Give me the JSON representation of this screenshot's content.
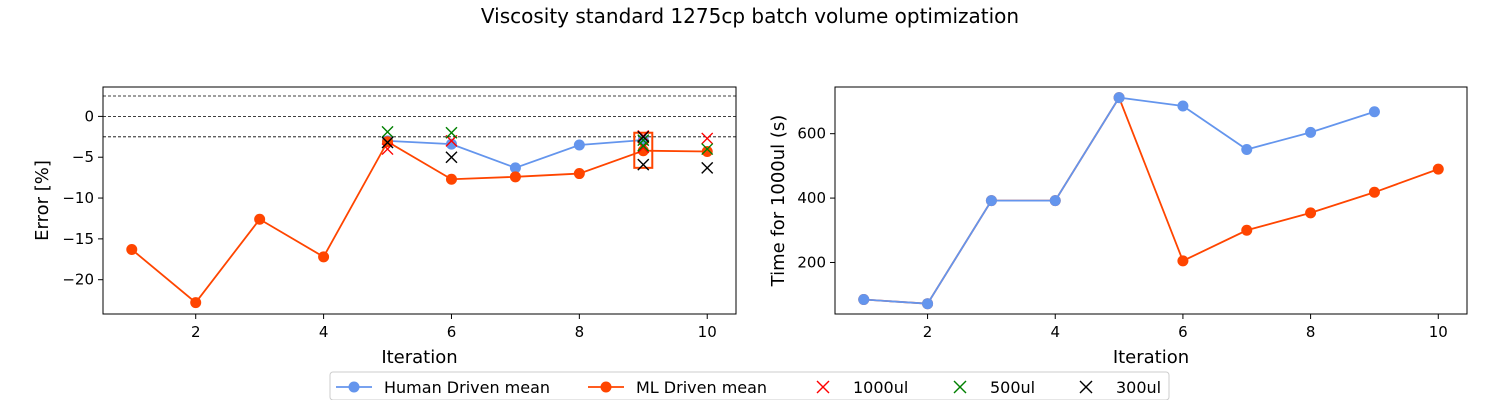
{
  "title": "Viscosity standard 1275cp batch volume optimization",
  "colors": {
    "human": "#6495ED",
    "ml": "#FF4500",
    "v1000": "#FF0000",
    "v500": "#008000",
    "v300": "#000000"
  },
  "legend": {
    "items": [
      {
        "label": "Human Driven mean",
        "marker": "circle-line",
        "color": "#6495ED"
      },
      {
        "label": "ML Driven mean",
        "marker": "circle-line",
        "color": "#FF4500"
      },
      {
        "label": "1000ul",
        "marker": "x",
        "color": "#FF0000"
      },
      {
        "label": "500ul",
        "marker": "x",
        "color": "#008000"
      },
      {
        "label": "300ul",
        "marker": "x",
        "color": "#000000"
      }
    ]
  },
  "chart_data": [
    {
      "type": "line",
      "xlabel": "Iteration",
      "ylabel": "Error [%]",
      "xlim": [
        0.55,
        10.45
      ],
      "ylim": [
        -24.2,
        3.6
      ],
      "xticks": [
        2,
        4,
        6,
        8,
        10
      ],
      "yticks": [
        0,
        -5,
        -10,
        -15,
        -20
      ],
      "ytick_labels": [
        "0",
        "−5",
        "−10",
        "−15",
        "−20"
      ],
      "reference_lines": [
        2.5,
        0,
        -2.5
      ],
      "series": [
        {
          "name": "Human Driven mean",
          "color": "#6495ED",
          "x": [
            5,
            6,
            7,
            8,
            9
          ],
          "y": [
            -3.0,
            -3.4,
            -6.3,
            -3.5,
            -2.9
          ]
        },
        {
          "name": "ML Driven mean",
          "color": "#FF4500",
          "x": [
            1,
            2,
            3,
            4,
            5,
            6,
            7,
            8,
            9,
            10
          ],
          "y": [
            -16.3,
            -22.8,
            -12.6,
            -17.2,
            -3.1,
            -7.7,
            -7.4,
            -7.0,
            -4.2,
            -4.3
          ]
        }
      ],
      "scatter": [
        {
          "name": "1000ul",
          "color": "#FF0000",
          "points": [
            [
              5,
              -4.0
            ],
            [
              6,
              -3.0
            ],
            [
              9,
              -3.8
            ],
            [
              9,
              -2.4
            ],
            [
              10,
              -2.7
            ]
          ]
        },
        {
          "name": "500ul",
          "color": "#008000",
          "points": [
            [
              5,
              -1.9
            ],
            [
              6,
              -2.0
            ],
            [
              9,
              -3.6
            ],
            [
              9,
              -2.9
            ],
            [
              10,
              -4.0
            ]
          ]
        },
        {
          "name": "300ul",
          "color": "#000000",
          "points": [
            [
              5,
              -3.2
            ],
            [
              6,
              -5.0
            ],
            [
              9,
              -5.9
            ],
            [
              9,
              -2.5
            ],
            [
              10,
              -6.3
            ]
          ]
        }
      ],
      "box": {
        "x": 9,
        "y": [
          -6.3,
          -2.0
        ],
        "color": "#FF4500"
      }
    },
    {
      "type": "line",
      "xlabel": "Iteration",
      "ylabel": "Time for 1000ul (s)",
      "xlim": [
        0.55,
        10.45
      ],
      "ylim": [
        40,
        745
      ],
      "xticks": [
        2,
        4,
        6,
        8,
        10
      ],
      "yticks": [
        200,
        400,
        600
      ],
      "ytick_labels": [
        "200",
        "400",
        "600"
      ],
      "series": [
        {
          "name": "ML Driven mean",
          "color": "#FF4500",
          "x": [
            1,
            2,
            3,
            4,
            5,
            6,
            7,
            8,
            9,
            10
          ],
          "y": [
            85,
            72,
            392,
            392,
            712,
            205,
            300,
            354,
            418,
            490
          ]
        },
        {
          "name": "Human Driven mean",
          "color": "#6495ED",
          "x": [
            1,
            2,
            3,
            4,
            5,
            6,
            7,
            8,
            9
          ],
          "y": [
            85,
            72,
            392,
            392,
            712,
            686,
            551,
            604,
            668
          ]
        }
      ]
    }
  ]
}
